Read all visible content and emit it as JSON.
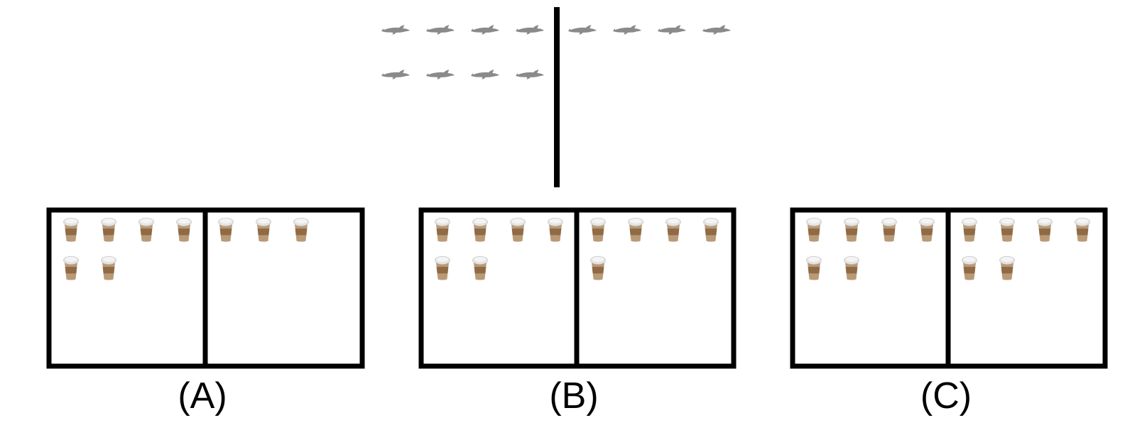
{
  "reference": {
    "item_icon": "dolphin-icon",
    "left_count": 8,
    "right_count": 4
  },
  "options": [
    {
      "label": "(A)",
      "item_icon": "coffee-cup-icon",
      "left_count": 6,
      "right_count": 3
    },
    {
      "label": "(B)",
      "item_icon": "coffee-cup-icon",
      "left_count": 6,
      "right_count": 5
    },
    {
      "label": "(C)",
      "item_icon": "coffee-cup-icon",
      "left_count": 6,
      "right_count": 6
    }
  ],
  "colors": {
    "line": "#000000",
    "dolphin": "#8a8a8a",
    "cup_lid": "#e4e4e4",
    "cup_body": "#b99a76",
    "cup_sleeve": "#8f6a45"
  }
}
